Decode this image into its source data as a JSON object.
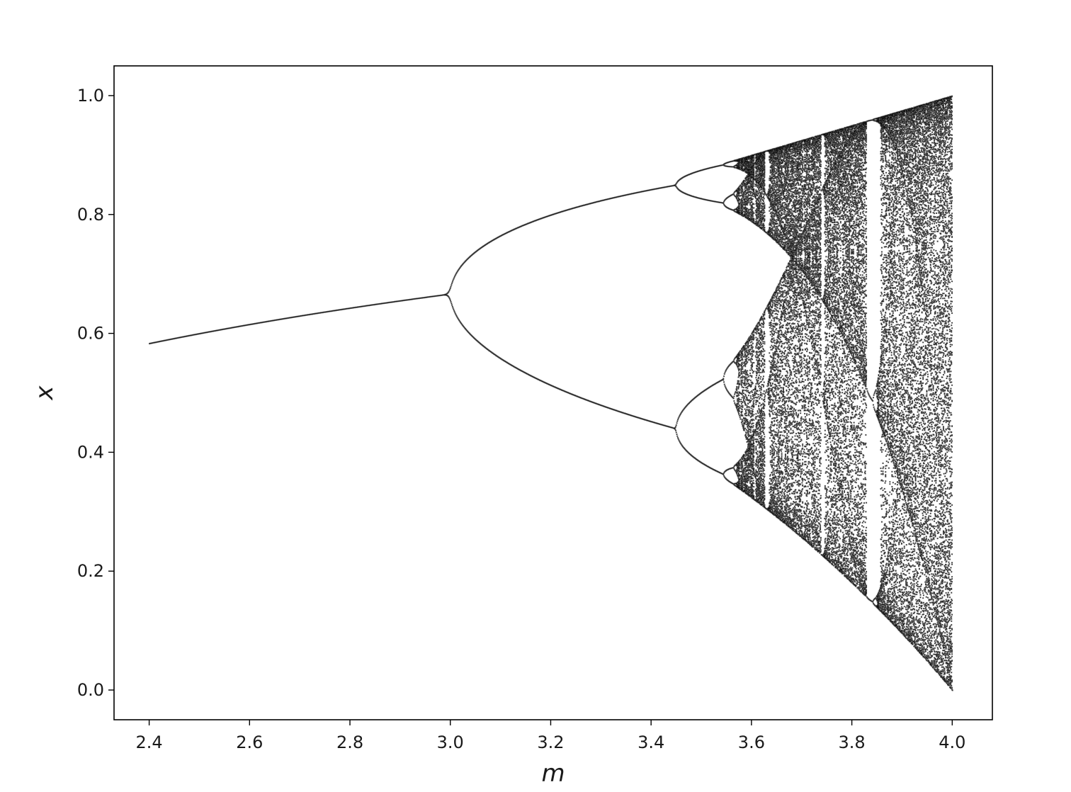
{
  "chart_data": {
    "type": "scatter",
    "title": "",
    "xlabel": "m",
    "ylabel": "x",
    "xlim": [
      2.33,
      4.08
    ],
    "ylim": [
      -0.05,
      1.05
    ],
    "xticks": [
      2.4,
      2.6,
      2.8,
      3.0,
      3.2,
      3.4,
      3.6,
      3.8,
      4.0
    ],
    "xtick_labels": [
      "2.4",
      "2.6",
      "2.8",
      "3.0",
      "3.2",
      "3.4",
      "3.6",
      "3.8",
      "4.0"
    ],
    "yticks": [
      0.0,
      0.2,
      0.4,
      0.6,
      0.8,
      1.0
    ],
    "ytick_labels": [
      "0.0",
      "0.2",
      "0.4",
      "0.6",
      "0.8",
      "1.0"
    ],
    "grid": false,
    "legend": "none",
    "point_color": "#000000",
    "series": [
      {
        "x_range": [
          2.4,
          4.0
        ],
        "y_range": [
          0.0,
          1.0
        ],
        "sample_points": [
          [
            2.4,
            0.583
          ],
          [
            2.6,
            0.615
          ],
          [
            2.8,
            0.643
          ],
          [
            2.99,
            0.665
          ],
          [
            3.2,
            0.513
          ],
          [
            3.2,
            0.799
          ],
          [
            3.4,
            0.452
          ],
          [
            3.4,
            0.842
          ],
          [
            3.5,
            0.383
          ],
          [
            3.5,
            0.501
          ],
          [
            3.5,
            0.827
          ],
          [
            3.5,
            0.875
          ],
          [
            3.83,
            0.156
          ],
          [
            3.83,
            0.505
          ],
          [
            3.83,
            0.957
          ],
          [
            4.0,
            0.0
          ],
          [
            4.0,
            1.0
          ]
        ]
      }
    ]
  }
}
